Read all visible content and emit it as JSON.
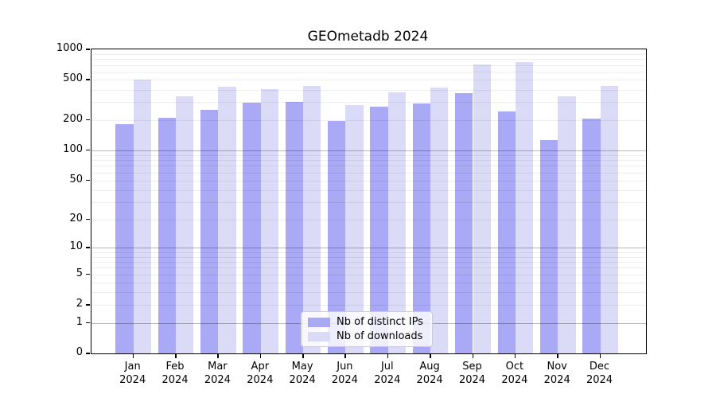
{
  "title": "GEOmetadb 2024",
  "colors": {
    "distinct_ips_bar": "#a9a9f5",
    "downloads_bar": "#dbdbf8",
    "axis": "#000000",
    "legend_border": "#cccccc"
  },
  "legend": {
    "items": [
      {
        "label": "Nb of distinct IPs",
        "color_key": "distinct_ips_bar"
      },
      {
        "label": "Nb of downloads",
        "color_key": "downloads_bar"
      }
    ]
  },
  "axes": {
    "y_tick_labels": [
      "1000",
      "500",
      "200",
      "100",
      "50",
      "20",
      "10",
      "5",
      "2",
      "1",
      "0"
    ],
    "x_year_label": "2024"
  },
  "chart_data": {
    "type": "bar",
    "title": "GEOmetadb 2024",
    "categories": [
      "Jan 2024",
      "Feb 2024",
      "Mar 2024",
      "Apr 2024",
      "May 2024",
      "Jun 2024",
      "Jul 2024",
      "Aug 2024",
      "Sep 2024",
      "Oct 2024",
      "Nov 2024",
      "Dec 2024"
    ],
    "months": [
      "Jan",
      "Feb",
      "Mar",
      "Apr",
      "May",
      "Jun",
      "Jul",
      "Aug",
      "Sep",
      "Oct",
      "Nov",
      "Dec"
    ],
    "series": [
      {
        "name": "Nb of distinct IPs",
        "values": [
          182,
          210,
          252,
          295,
          305,
          196,
          271,
          293,
          367,
          245,
          126,
          205
        ]
      },
      {
        "name": "Nb of downloads",
        "values": [
          500,
          342,
          428,
          405,
          435,
          283,
          378,
          420,
          715,
          745,
          345,
          438
        ]
      }
    ],
    "yscale": "log1p",
    "ylim": [
      0,
      1000
    ],
    "yticks": [
      0,
      1,
      2,
      5,
      10,
      20,
      50,
      100,
      200,
      500,
      1000
    ],
    "grid": "both, horizontal only, drawn over bars",
    "legend_position": "lower center",
    "xlabel": "",
    "ylabel": ""
  }
}
